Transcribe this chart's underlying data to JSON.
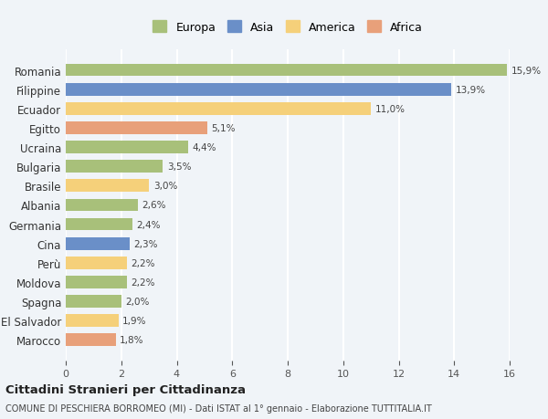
{
  "categories": [
    "Romania",
    "Filippine",
    "Ecuador",
    "Egitto",
    "Ucraina",
    "Bulgaria",
    "Brasile",
    "Albania",
    "Germania",
    "Cina",
    "Perù",
    "Moldova",
    "Spagna",
    "El Salvador",
    "Marocco"
  ],
  "values": [
    15.9,
    13.9,
    11.0,
    5.1,
    4.4,
    3.5,
    3.0,
    2.6,
    2.4,
    2.3,
    2.2,
    2.2,
    2.0,
    1.9,
    1.8
  ],
  "labels": [
    "15,9%",
    "13,9%",
    "11,0%",
    "5,1%",
    "4,4%",
    "3,5%",
    "3,0%",
    "2,6%",
    "2,4%",
    "2,3%",
    "2,2%",
    "2,2%",
    "2,0%",
    "1,9%",
    "1,8%"
  ],
  "colors": [
    "#a8c07a",
    "#6a8fc8",
    "#f5d07a",
    "#e8a07a",
    "#a8c07a",
    "#a8c07a",
    "#f5d07a",
    "#a8c07a",
    "#a8c07a",
    "#6a8fc8",
    "#f5d07a",
    "#a8c07a",
    "#a8c07a",
    "#f5d07a",
    "#e8a07a"
  ],
  "continents": [
    "Europa",
    "Asia",
    "America",
    "Africa"
  ],
  "legend_colors": [
    "#a8c07a",
    "#6a8fc8",
    "#f5d07a",
    "#e8a07a"
  ],
  "xlim": [
    0,
    16
  ],
  "xticks": [
    0,
    2,
    4,
    6,
    8,
    10,
    12,
    14,
    16
  ],
  "title": "Cittadini Stranieri per Cittadinanza",
  "subtitle": "COMUNE DI PESCHIERA BORROMEO (MI) - Dati ISTAT al 1° gennaio - Elaborazione TUTTITALIA.IT",
  "background_color": "#f0f4f8",
  "grid_color": "#ffffff"
}
